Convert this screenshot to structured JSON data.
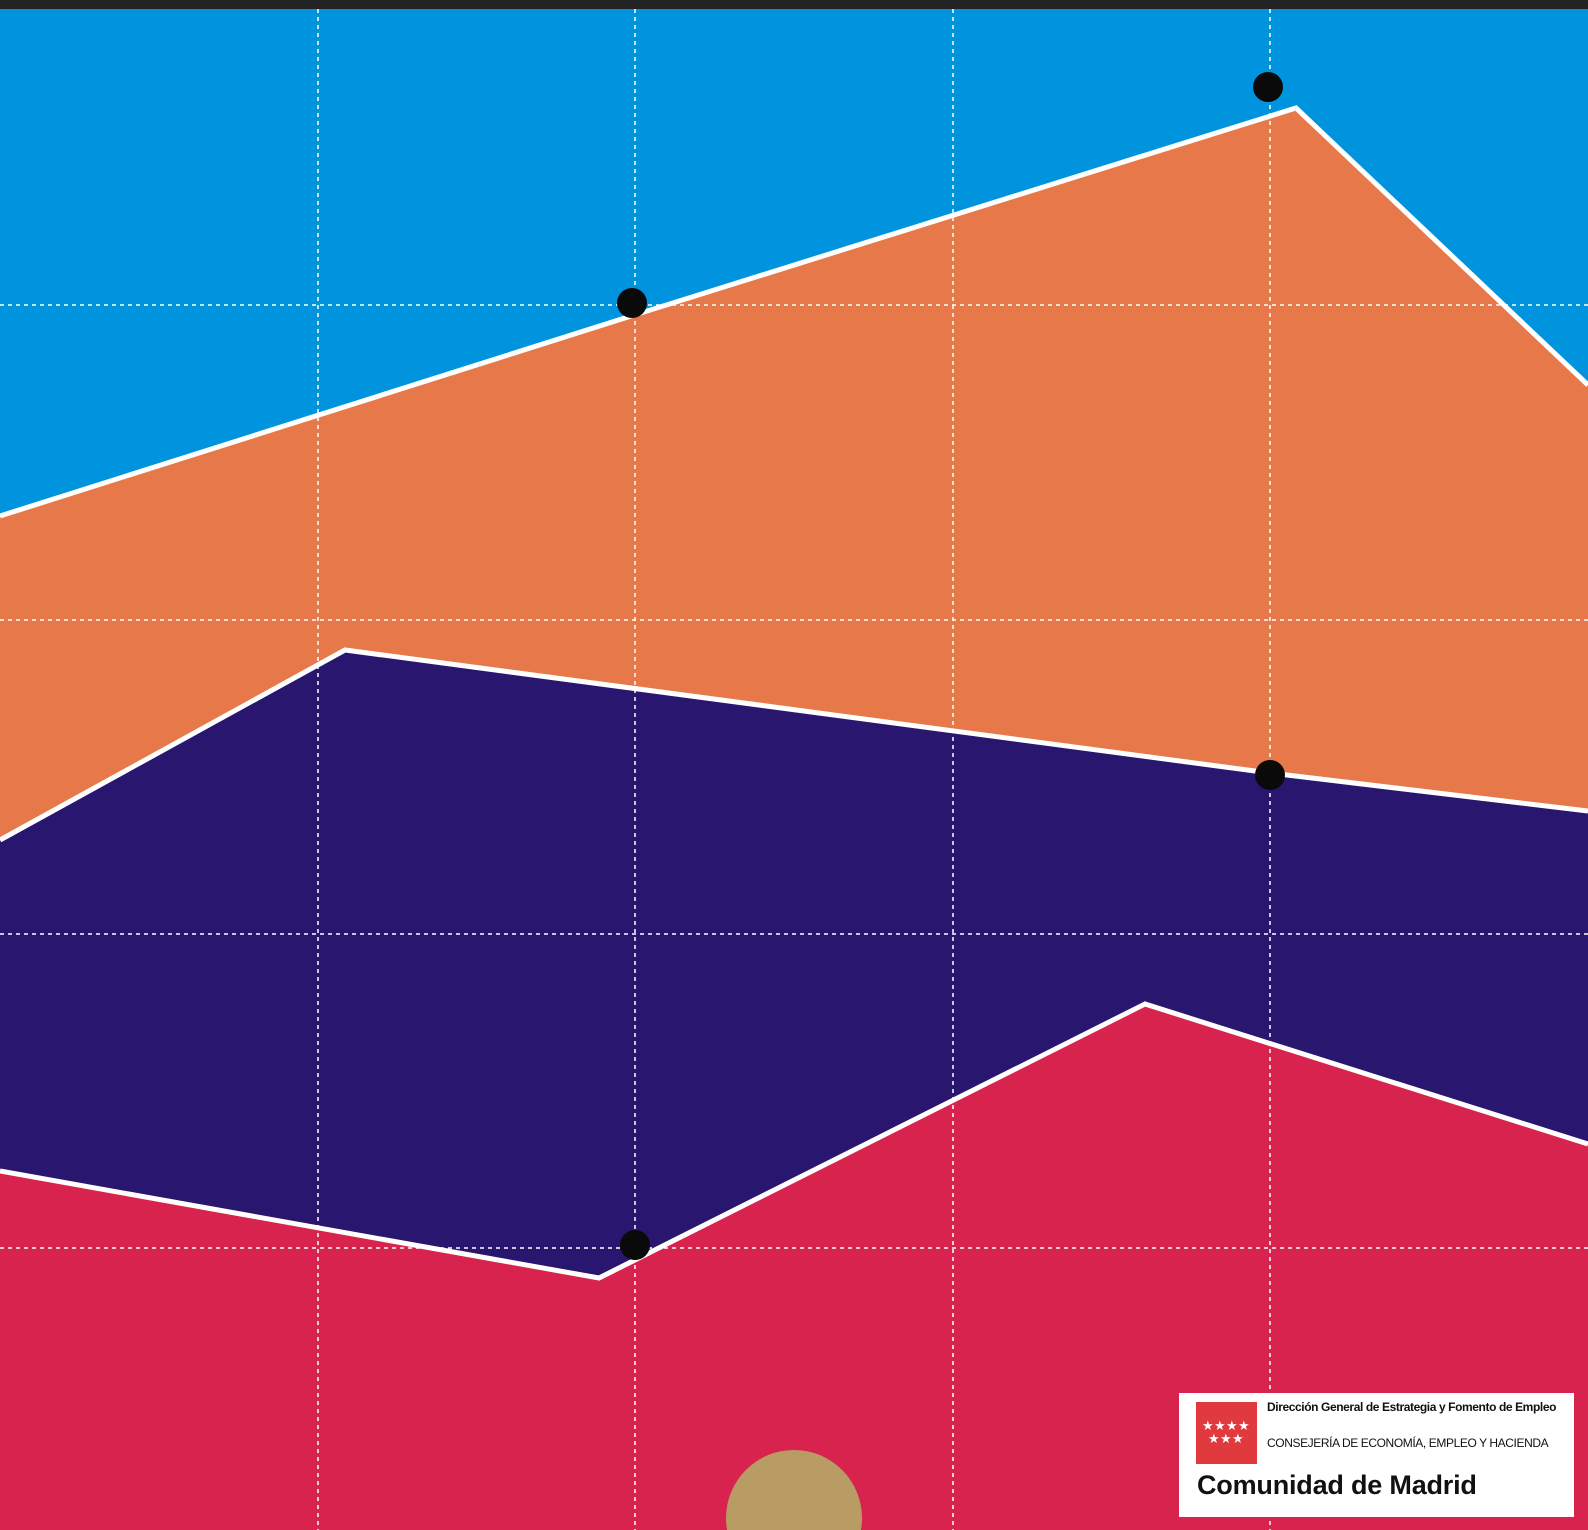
{
  "colors": {
    "band_top": "#0094df",
    "band_orange": "#e77849",
    "band_navy": "#29166f",
    "band_red": "#d8234e",
    "semicircle": "#b99c64",
    "divider": "#ffffff",
    "grid": "#ffffff",
    "dots": "#0a0a0a"
  },
  "logo": {
    "directorate": "Dirección General de Estrategia y Fomento de Empleo",
    "ministry": "CONSEJERÍA DE ECONOMÍA, EMPLEO Y HACIENDA",
    "region": "Comunidad de Madrid",
    "flag_icon": "madrid-flag-seven-stars-icon"
  }
}
